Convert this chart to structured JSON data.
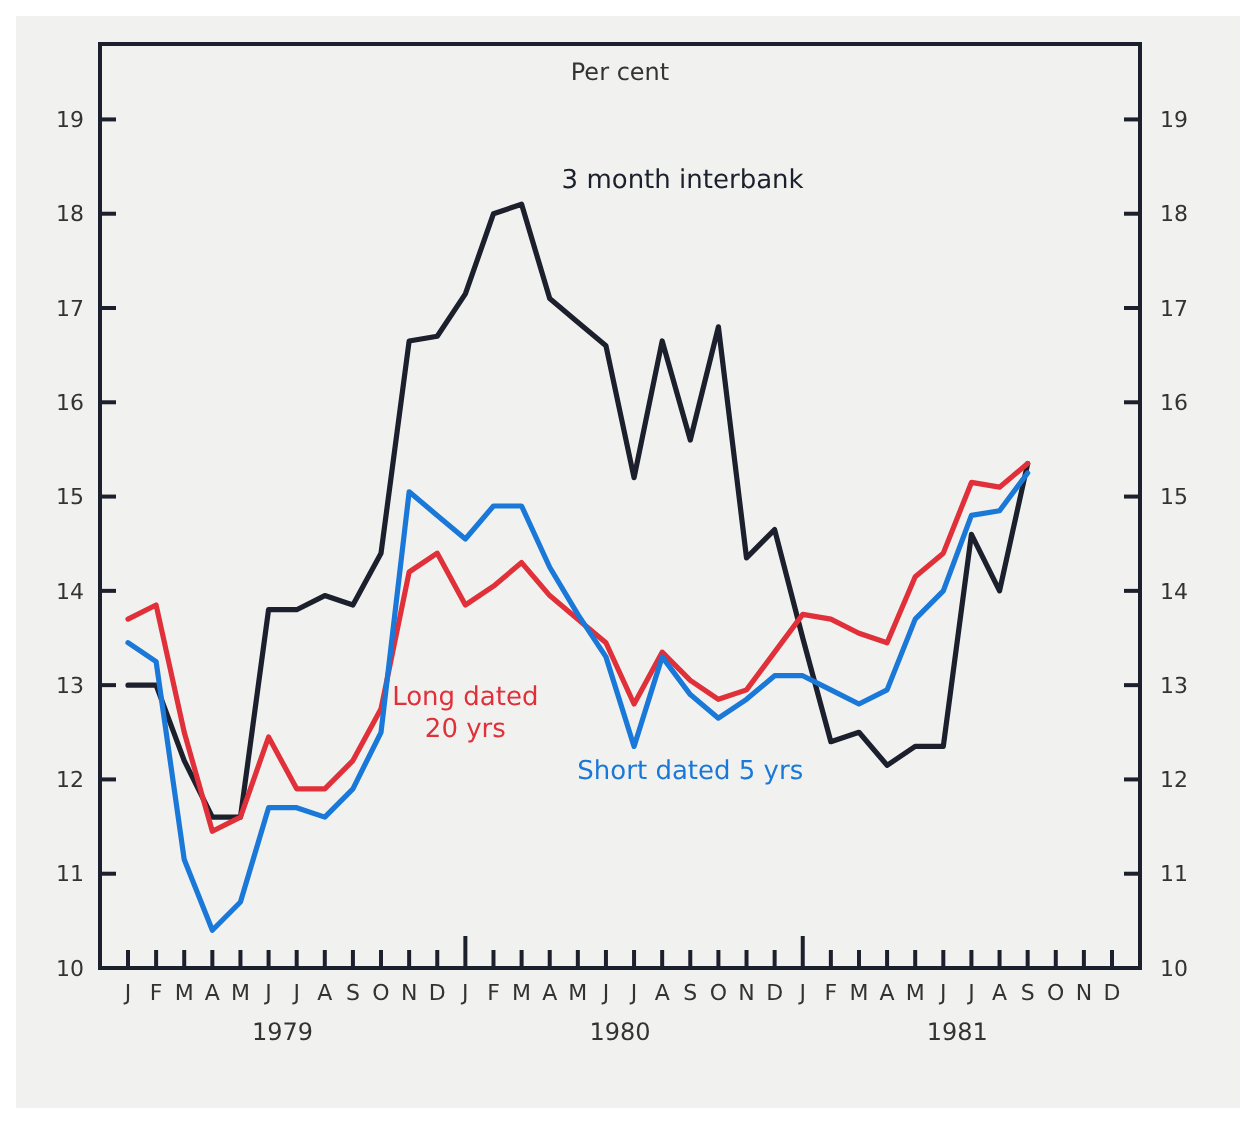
{
  "chart_data": {
    "type": "line",
    "ylabel": "Per cent",
    "categories": [
      "J",
      "F",
      "M",
      "A",
      "M",
      "J",
      "J",
      "A",
      "S",
      "O",
      "N",
      "D",
      "J",
      "F",
      "M",
      "A",
      "M",
      "J",
      "J",
      "A",
      "S",
      "O",
      "N",
      "D",
      "J",
      "F",
      "M",
      "A",
      "M",
      "J",
      "J",
      "A",
      "S",
      "O",
      "N",
      "D"
    ],
    "series": [
      {
        "name": "3 month interbank",
        "color": "#1c1f2c",
        "values": [
          13.0,
          13.0,
          12.2,
          11.6,
          11.6,
          13.8,
          13.8,
          13.95,
          13.85,
          14.4,
          16.65,
          16.7,
          17.15,
          18.0,
          18.1,
          17.1,
          16.85,
          16.6,
          15.2,
          16.65,
          15.6,
          16.8,
          14.35,
          14.65,
          13.5,
          12.4,
          12.5,
          12.15,
          12.35,
          12.35,
          14.6,
          14.0,
          15.35,
          null,
          null,
          null
        ]
      },
      {
        "name": "Long dated\n20 yrs",
        "color": "#e0303a",
        "values": [
          13.7,
          13.85,
          12.5,
          11.45,
          11.6,
          12.45,
          11.9,
          11.9,
          12.2,
          12.75,
          14.2,
          14.4,
          13.85,
          14.05,
          14.3,
          13.95,
          13.7,
          13.45,
          12.8,
          13.35,
          13.05,
          12.85,
          12.95,
          13.35,
          13.75,
          13.7,
          13.55,
          13.45,
          14.15,
          14.4,
          15.15,
          15.1,
          15.35,
          null,
          null,
          null
        ]
      },
      {
        "name": "Short dated 5 yrs",
        "color": "#1a78d8",
        "values": [
          13.45,
          13.25,
          11.15,
          10.4,
          10.7,
          11.7,
          11.7,
          11.6,
          11.9,
          12.5,
          15.05,
          14.8,
          14.55,
          14.9,
          14.9,
          14.25,
          13.75,
          13.3,
          12.35,
          13.3,
          12.9,
          12.65,
          12.85,
          13.1,
          13.1,
          12.95,
          12.8,
          12.95,
          13.7,
          14.0,
          14.8,
          14.85,
          15.25,
          null,
          null,
          null
        ]
      }
    ],
    "ylim": [
      10,
      19.8
    ],
    "yticks": [
      10,
      11,
      12,
      13,
      14,
      15,
      16,
      17,
      18,
      19
    ],
    "y2lim": [
      10,
      19.8
    ],
    "y2ticks": [
      10,
      11,
      12,
      13,
      14,
      15,
      16,
      17,
      18,
      19
    ],
    "annotations": [
      "1979",
      "1980",
      "1981"
    ],
    "grid": false
  }
}
